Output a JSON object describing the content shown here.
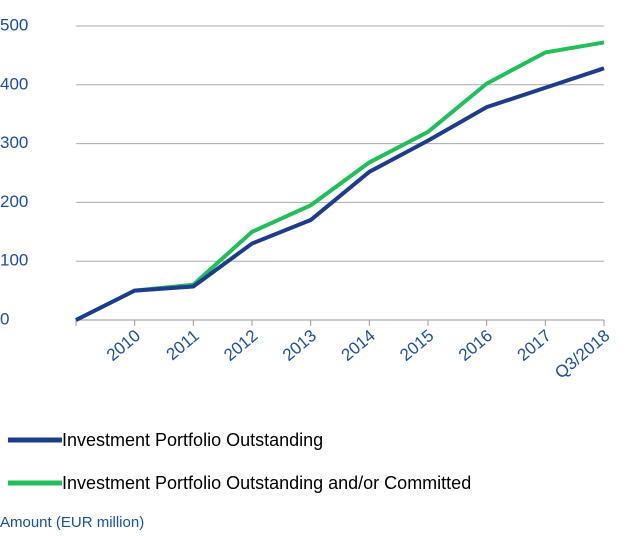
{
  "chart_data": {
    "type": "line",
    "categories": [
      null,
      "2010",
      "2011",
      "2012",
      "2013",
      "2014",
      "2015",
      "2016",
      "2017",
      "Q3/2018"
    ],
    "series": [
      {
        "name": "Investment Portfolio Outstanding",
        "color": "#1b3c8f",
        "values": [
          0,
          50,
          57,
          130,
          170,
          252,
          305,
          362,
          395,
          428
        ]
      },
      {
        "name": "Investment Portfolio Outstanding and/or Committed",
        "color": "#1fbf5a",
        "values": [
          0,
          50,
          60,
          150,
          195,
          268,
          320,
          402,
          455,
          472
        ]
      }
    ],
    "ylim": [
      0,
      500
    ],
    "yticks": [
      0,
      100,
      200,
      300,
      400,
      500
    ],
    "grid": true,
    "y_axis_label": "Amount (EUR million)"
  }
}
